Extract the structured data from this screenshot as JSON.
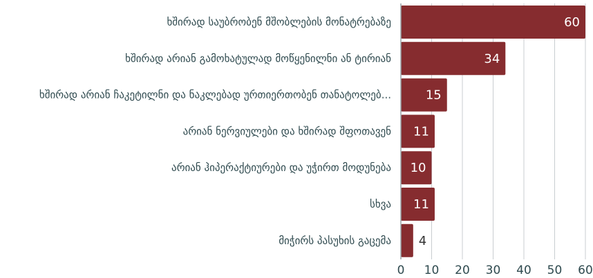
{
  "chart_data": {
    "type": "bar",
    "orientation": "horizontal",
    "categories": [
      "ხშირად საუბრობენ მშობლების მონატრებაზე",
      "ხშირად არიან გამოხატულად მოწყენილნი ან ტირიან",
      "ხშირად არიან ჩაკეტილნი და ნაკლებად ურთიერთობენ თანატოლებ...",
      "არიან ნერვიულები და ხშირად შფოთავენ",
      "არიან ჰიპერაქტიურები და უჭირთ მოდუნება",
      "სხვა",
      "მიჭირს პასუხის გაცემა"
    ],
    "values": [
      60,
      34,
      15,
      11,
      10,
      11,
      4
    ],
    "xlim": [
      0,
      60
    ],
    "ticks": [
      0,
      10,
      20,
      30,
      40,
      50,
      60
    ],
    "grid": true,
    "bar_color": "#862c2f"
  }
}
